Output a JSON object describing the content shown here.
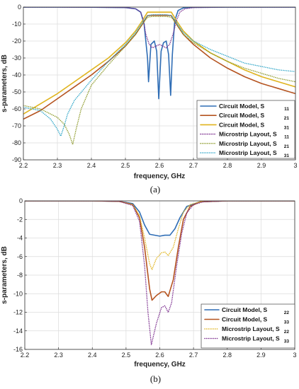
{
  "chart_data": [
    {
      "type": "line",
      "caption": "(a)",
      "xlabel": "frequency, GHz",
      "ylabel": "s-parameters, dB",
      "xlim": [
        2.2,
        3.0
      ],
      "ylim": [
        -90,
        0
      ],
      "xticks": [
        2.2,
        2.3,
        2.4,
        2.5,
        2.6,
        2.7,
        2.8,
        2.9,
        3.0
      ],
      "xtick_labels": [
        "2.2",
        "2.3",
        "2.4",
        "2.5",
        "2.6",
        "2.7",
        "2.8",
        "2.9",
        "3"
      ],
      "yticks": [
        0,
        -10,
        -20,
        -30,
        -40,
        -50,
        -60,
        -70,
        -80,
        -90
      ],
      "ytick_labels": [
        "0",
        "-10",
        "-20",
        "-30",
        "-40",
        "-50",
        "-60",
        "-70",
        "-80",
        "-90"
      ],
      "grid": true,
      "legend_position": "bottom-right",
      "series": [
        {
          "name": "Circuit Model, S",
          "subscript": "11",
          "color": "#2f6db5",
          "style": "solid",
          "x": [
            2.2,
            2.3,
            2.4,
            2.5,
            2.53,
            2.545,
            2.555,
            2.565,
            2.568,
            2.575,
            2.585,
            2.592,
            2.598,
            2.605,
            2.612,
            2.62,
            2.627,
            2.633,
            2.638,
            2.645,
            2.655,
            2.67,
            2.7,
            2.8,
            2.9,
            3.0
          ],
          "y": [
            -0.05,
            -0.05,
            -0.1,
            -0.3,
            -1.0,
            -3.0,
            -10,
            -30,
            -44,
            -22,
            -20,
            -26,
            -54,
            -26,
            -21,
            -20,
            -28,
            -52,
            -28,
            -8,
            -2,
            -0.5,
            -0.2,
            -0.05,
            -0.05,
            -0.05
          ]
        },
        {
          "name": "Circuit Model, S",
          "subscript": "21",
          "color": "#b5531f",
          "style": "solid",
          "x": [
            2.2,
            2.25,
            2.3,
            2.35,
            2.4,
            2.45,
            2.5,
            2.53,
            2.55,
            2.565,
            2.58,
            2.62,
            2.635,
            2.65,
            2.67,
            2.7,
            2.75,
            2.8,
            2.85,
            2.9,
            2.95,
            3.0
          ],
          "y": [
            -66,
            -61,
            -54,
            -47,
            -40,
            -32,
            -23,
            -16,
            -10,
            -5,
            -4.8,
            -4.8,
            -5,
            -10,
            -16,
            -22,
            -30,
            -36,
            -41,
            -45,
            -48,
            -51
          ]
        },
        {
          "name": "Circuit Model, S",
          "subscript": "31",
          "color": "#e0b41e",
          "style": "solid",
          "x": [
            2.2,
            2.25,
            2.3,
            2.35,
            2.4,
            2.45,
            2.5,
            2.53,
            2.55,
            2.565,
            2.58,
            2.62,
            2.635,
            2.65,
            2.67,
            2.7,
            2.75,
            2.8,
            2.85,
            2.9,
            2.95,
            3.0
          ],
          "y": [
            -63,
            -57,
            -51,
            -44,
            -37,
            -30,
            -21,
            -14,
            -8,
            -3,
            -3,
            -3,
            -3,
            -8,
            -14,
            -20,
            -27,
            -32,
            -37,
            -41,
            -44,
            -47
          ]
        },
        {
          "name": "Microstrip Layout, S",
          "subscript": "11",
          "color": "#7b2d8e",
          "style": "dotted",
          "x": [
            2.2,
            2.4,
            2.5,
            2.53,
            2.545,
            2.553,
            2.56,
            2.57,
            2.58,
            2.59,
            2.6,
            2.61,
            2.62,
            2.63,
            2.64,
            2.65,
            2.66,
            2.675,
            2.7,
            2.8,
            3.0
          ],
          "y": [
            -0.05,
            -0.1,
            -0.3,
            -1.0,
            -3,
            -8,
            -16,
            -22,
            -24,
            -23,
            -22,
            -23,
            -24,
            -22,
            -16,
            -8,
            -3,
            -1,
            -0.3,
            -0.05,
            -0.05
          ]
        },
        {
          "name": "Microstrip Layout, S",
          "subscript": "21",
          "color": "#8d9a2a",
          "style": "dotted",
          "x": [
            2.2,
            2.25,
            2.3,
            2.32,
            2.335,
            2.345,
            2.355,
            2.37,
            2.4,
            2.45,
            2.5,
            2.53,
            2.55,
            2.565,
            2.58,
            2.62,
            2.635,
            2.65,
            2.67,
            2.7,
            2.75,
            2.8,
            2.85,
            2.9,
            2.95,
            3.0
          ],
          "y": [
            -58,
            -60,
            -65,
            -69,
            -75,
            -81,
            -72,
            -60,
            -46,
            -34,
            -23,
            -16,
            -10,
            -6,
            -5.5,
            -5.5,
            -6,
            -10,
            -16,
            -21,
            -27,
            -32,
            -36,
            -39,
            -42,
            -44
          ]
        },
        {
          "name": "Microstrip Layout, S",
          "subscript": "31",
          "color": "#2fa6c8",
          "style": "dotted",
          "x": [
            2.2,
            2.25,
            2.28,
            2.3,
            2.31,
            2.32,
            2.33,
            2.35,
            2.4,
            2.45,
            2.5,
            2.53,
            2.55,
            2.565,
            2.58,
            2.62,
            2.635,
            2.65,
            2.67,
            2.7,
            2.75,
            2.8,
            2.85,
            2.9,
            2.95,
            3.0
          ],
          "y": [
            -59,
            -61,
            -66,
            -72,
            -76,
            -70,
            -63,
            -55,
            -43,
            -32,
            -22,
            -15,
            -9,
            -5,
            -4.5,
            -4.5,
            -5,
            -9,
            -15,
            -20,
            -25,
            -29,
            -33,
            -35,
            -37,
            -38
          ]
        }
      ]
    },
    {
      "type": "line",
      "caption": "(b)",
      "xlabel": "frequency, GHz",
      "ylabel": "s-parameters, dB",
      "xlim": [
        2.2,
        3.0
      ],
      "ylim": [
        -16,
        0
      ],
      "xticks": [
        2.2,
        2.3,
        2.4,
        2.5,
        2.6,
        2.7,
        2.8,
        2.9,
        3.0
      ],
      "xtick_labels": [
        "2.2",
        "2.3",
        "2.4",
        "2.5",
        "2.6",
        "2.7",
        "2.8",
        "2.9",
        "3"
      ],
      "yticks": [
        0,
        -2,
        -4,
        -6,
        -8,
        -10,
        -12,
        -14,
        -16
      ],
      "ytick_labels": [
        "0",
        "-2",
        "-4",
        "-6",
        "-8",
        "-10",
        "-12",
        "-14",
        "-16"
      ],
      "grid": true,
      "legend_position": "bottom-right",
      "series": [
        {
          "name": "Circuit Model, S",
          "subscript": "22",
          "color": "#2f6db5",
          "style": "solid",
          "x": [
            2.2,
            2.4,
            2.48,
            2.52,
            2.54,
            2.555,
            2.57,
            2.6,
            2.615,
            2.63,
            2.645,
            2.66,
            2.68,
            2.72,
            2.8,
            3.0
          ],
          "y": [
            0,
            0,
            -0.05,
            -0.3,
            -1.2,
            -2.6,
            -3.6,
            -3.8,
            -3.7,
            -3.7,
            -3.0,
            -1.8,
            -0.6,
            -0.1,
            0,
            0
          ]
        },
        {
          "name": "Circuit Model, S",
          "subscript": "33",
          "color": "#b5531f",
          "style": "solid",
          "x": [
            2.2,
            2.4,
            2.48,
            2.52,
            2.54,
            2.555,
            2.57,
            2.577,
            2.59,
            2.605,
            2.615,
            2.625,
            2.64,
            2.655,
            2.67,
            2.69,
            2.72,
            2.8,
            3.0
          ],
          "y": [
            0,
            0,
            -0.05,
            -0.4,
            -1.8,
            -5,
            -9.5,
            -10.7,
            -10.2,
            -9.8,
            -9.8,
            -10.3,
            -8.5,
            -5,
            -2,
            -0.6,
            -0.1,
            0,
            0
          ]
        },
        {
          "name": "Microstrip Layout, S",
          "subscript": "22",
          "color": "#e0b41e",
          "style": "dotted",
          "x": [
            2.2,
            2.4,
            2.48,
            2.52,
            2.54,
            2.555,
            2.57,
            2.577,
            2.59,
            2.605,
            2.615,
            2.625,
            2.64,
            2.655,
            2.67,
            2.69,
            2.72,
            2.8,
            3.0
          ],
          "y": [
            0,
            0,
            -0.05,
            -0.4,
            -1.6,
            -4,
            -6.8,
            -7.4,
            -6.2,
            -5.6,
            -5.5,
            -5.9,
            -5.0,
            -3,
            -1.2,
            -0.4,
            -0.1,
            0,
            0
          ]
        },
        {
          "name": "Microstrip Layout, S",
          "subscript": "33",
          "color": "#7b2d8e",
          "style": "dotted",
          "x": [
            2.2,
            2.4,
            2.48,
            2.52,
            2.54,
            2.555,
            2.565,
            2.575,
            2.59,
            2.605,
            2.615,
            2.625,
            2.635,
            2.65,
            2.665,
            2.68,
            2.7,
            2.73,
            2.8,
            3.0
          ],
          "y": [
            0,
            0,
            -0.05,
            -0.5,
            -2.2,
            -7,
            -12,
            -15.5,
            -13.2,
            -11.5,
            -11.3,
            -12,
            -11,
            -7,
            -3.5,
            -1.3,
            -0.4,
            -0.1,
            0,
            0
          ]
        }
      ]
    }
  ]
}
